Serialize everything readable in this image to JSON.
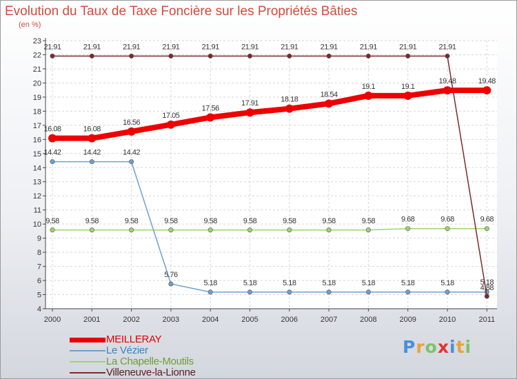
{
  "chart_data": {
    "type": "line",
    "title": "Evolution du Taux de Taxe Foncière sur les Propriétés Bâties",
    "ylabel": "(en %)",
    "xlabel": "",
    "x": [
      "2000",
      "2001",
      "2002",
      "2003",
      "2004",
      "2005",
      "2006",
      "2007",
      "2008",
      "2009",
      "2010",
      "2011"
    ],
    "ylim": [
      4,
      23
    ],
    "yticks": [
      "4",
      "5",
      "6",
      "7",
      "8",
      "9",
      "10",
      "11",
      "12",
      "13",
      "14",
      "15",
      "16",
      "17",
      "18",
      "19",
      "20",
      "21",
      "22",
      "23"
    ],
    "grid": true,
    "series": [
      {
        "name": "MEILLERAY",
        "color": "#ee0000",
        "values": [
          16.08,
          16.08,
          16.56,
          17.05,
          17.56,
          17.91,
          18.18,
          18.54,
          19.1,
          19.1,
          19.48,
          19.48
        ],
        "labels": [
          "16.08",
          "16.08",
          "16.56",
          "17.05",
          "17.56",
          "17.91",
          "18.18",
          "18.54",
          "19.1",
          "19.1",
          "19.48",
          "19.48"
        ]
      },
      {
        "name": "Le Vézier",
        "color": "#6f9fcf",
        "values": [
          14.42,
          14.42,
          14.42,
          5.76,
          5.18,
          5.18,
          5.18,
          5.18,
          5.18,
          5.18,
          5.18,
          5.18
        ],
        "labels": [
          "14.42",
          "14.42",
          "14.42",
          "5.76",
          "5.18",
          "5.18",
          "5.18",
          "5.18",
          "5.18",
          "5.18",
          "5.18",
          "5.18"
        ]
      },
      {
        "name": "La Chapelle-Moutils",
        "color": "#9ed46a",
        "values": [
          9.58,
          9.58,
          9.58,
          9.58,
          9.58,
          9.58,
          9.58,
          9.58,
          9.58,
          9.68,
          9.68,
          9.68
        ],
        "labels": [
          "9.58",
          "9.58",
          "9.58",
          "9.58",
          "9.58",
          "9.58",
          "9.58",
          "9.58",
          "9.58",
          "9.68",
          "9.68",
          "9.68"
        ]
      },
      {
        "name": "Villeneuve-la-Lionne",
        "color": "#7a2a2a",
        "values": [
          21.91,
          21.91,
          21.91,
          21.91,
          21.91,
          21.91,
          21.91,
          21.91,
          21.91,
          21.91,
          21.91,
          4.88
        ],
        "labels": [
          "21.91",
          "21.91",
          "21.91",
          "21.91",
          "21.91",
          "21.91",
          "21.91",
          "21.91",
          "21.91",
          "21.91",
          "21.91",
          "4.88"
        ]
      }
    ]
  },
  "logo": {
    "p": "P",
    "r": "r",
    "o": "o",
    "x": "x",
    "i1": "i",
    "t": "t",
    "i2": "i"
  }
}
